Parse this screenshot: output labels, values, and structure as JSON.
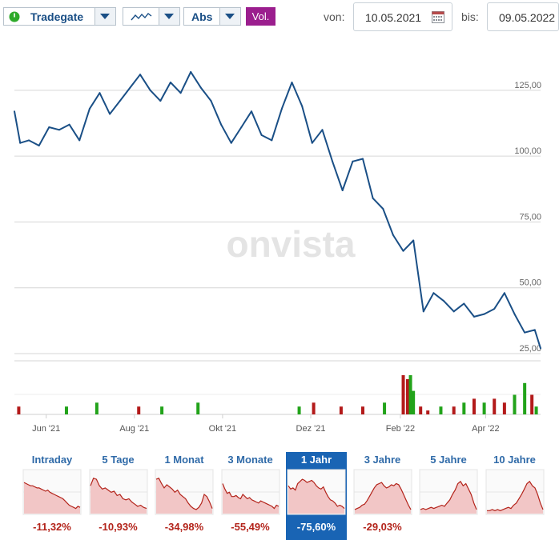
{
  "toolbar": {
    "exchange": "Tradegate",
    "scale": "Abs",
    "volume_label": "Vol.",
    "from_label": "von:",
    "from_date": "10.05.2021",
    "to_label": "bis:",
    "to_date": "09.05.2022",
    "icons": {
      "status": "green-power-icon",
      "chart_type": "line-chart-icon",
      "calendar": "calendar-icon",
      "dropdown": "chevron-down-icon"
    }
  },
  "watermark": "onvista",
  "colors": {
    "line": "#1a4f86",
    "vol_up": "#22a31a",
    "vol_down": "#b31a1a",
    "active_tab": "#1964b4",
    "negative": "#b3231a",
    "vol_button": "#9b1e8e"
  },
  "chart_data": {
    "type": "line",
    "title": "",
    "xlabel": "",
    "ylabel": "",
    "x_tick_labels": [
      "Jun '21",
      "Aug '21",
      "Okt '21",
      "Dez '21",
      "Feb '22",
      "Apr '22"
    ],
    "y_tick_labels": [
      "125,00",
      "100,00",
      "75,00",
      "50,00",
      "25,00"
    ],
    "ylim": [
      25,
      135
    ],
    "y_ticks": [
      125,
      100,
      75,
      50,
      25
    ],
    "x": [
      "2021-05-10",
      "2021-05-14",
      "2021-05-20",
      "2021-05-27",
      "2021-06-03",
      "2021-06-10",
      "2021-06-17",
      "2021-06-24",
      "2021-07-01",
      "2021-07-08",
      "2021-07-15",
      "2021-07-22",
      "2021-07-29",
      "2021-08-05",
      "2021-08-12",
      "2021-08-19",
      "2021-08-26",
      "2021-09-02",
      "2021-09-09",
      "2021-09-16",
      "2021-09-23",
      "2021-09-30",
      "2021-10-07",
      "2021-10-14",
      "2021-10-21",
      "2021-10-28",
      "2021-11-04",
      "2021-11-11",
      "2021-11-18",
      "2021-11-25",
      "2021-12-02",
      "2021-12-09",
      "2021-12-16",
      "2021-12-23",
      "2021-12-30",
      "2022-01-06",
      "2022-01-13",
      "2022-01-20",
      "2022-01-27",
      "2022-02-03",
      "2022-02-10",
      "2022-02-17",
      "2022-02-24",
      "2022-03-03",
      "2022-03-10",
      "2022-03-17",
      "2022-03-24",
      "2022-03-31",
      "2022-04-07",
      "2022-04-14",
      "2022-04-21",
      "2022-04-28",
      "2022-05-05",
      "2022-05-09"
    ],
    "series": [
      {
        "values": [
          117,
          105,
          106,
          104,
          111,
          110,
          112,
          106,
          118,
          124,
          116,
          121,
          126,
          131,
          125,
          121,
          128,
          124,
          132,
          126,
          121,
          112,
          105,
          111,
          117,
          108,
          106,
          118,
          128,
          119,
          105,
          110,
          98,
          87,
          98,
          99,
          84,
          80,
          70,
          64,
          68,
          41,
          48,
          45,
          41,
          44,
          39,
          40,
          42,
          48,
          40,
          33,
          34,
          27
        ]
      }
    ],
    "volume": {
      "x": [
        "2021-05-13",
        "2021-06-15",
        "2021-07-06",
        "2021-08-04",
        "2021-08-20",
        "2021-09-14",
        "2021-11-23",
        "2021-12-03",
        "2021-12-22",
        "2022-01-06",
        "2022-01-21",
        "2022-02-03",
        "2022-02-06",
        "2022-02-08",
        "2022-02-10",
        "2022-02-15",
        "2022-02-20",
        "2022-03-01",
        "2022-03-10",
        "2022-03-17",
        "2022-03-24",
        "2022-03-31",
        "2022-04-07",
        "2022-04-14",
        "2022-04-21",
        "2022-04-28",
        "2022-05-03",
        "2022-05-06"
      ],
      "values": [
        2,
        2,
        3,
        2,
        2,
        3,
        2,
        3,
        2,
        2,
        3,
        10,
        9,
        10,
        6,
        2,
        1,
        2,
        2,
        3,
        4,
        3,
        4,
        3,
        5,
        8,
        5,
        2
      ],
      "colors": [
        "down",
        "up",
        "up",
        "down",
        "up",
        "up",
        "up",
        "down",
        "down",
        "down",
        "up",
        "down",
        "down",
        "up",
        "up",
        "down",
        "down",
        "up",
        "down",
        "up",
        "down",
        "up",
        "down",
        "down",
        "up",
        "up",
        "down",
        "up"
      ]
    }
  },
  "periods": [
    {
      "label": "Intraday",
      "pct": "-11,32%",
      "active": false,
      "spark": [
        9,
        10,
        11,
        12,
        12,
        13,
        14,
        14,
        15,
        16,
        17,
        16,
        18,
        19,
        20,
        21,
        22,
        23,
        24,
        26,
        28,
        30,
        31,
        32,
        33,
        31,
        32
      ]
    },
    {
      "label": "5 Tage",
      "pct": "-10,93%",
      "active": false,
      "spark": [
        12,
        5,
        6,
        12,
        15,
        14,
        16,
        18,
        17,
        21,
        20,
        24,
        25,
        24,
        27,
        29,
        31,
        30,
        32,
        33
      ]
    },
    {
      "label": "1 Monat",
      "pct": "-34,98%",
      "active": false,
      "spark": [
        6,
        5,
        10,
        14,
        11,
        13,
        15,
        18,
        16,
        20,
        22,
        24,
        28,
        31,
        33,
        34,
        32,
        28,
        20,
        22,
        27,
        33
      ]
    },
    {
      "label": "3 Monate",
      "pct": "-55,49%",
      "active": false,
      "spark": [
        10,
        15,
        19,
        18,
        22,
        22,
        21,
        23,
        24,
        20,
        22,
        24,
        23,
        25,
        26,
        27,
        28,
        26,
        27,
        28,
        29,
        30,
        31,
        33,
        30,
        31
      ]
    },
    {
      "label": "1 Jahr",
      "pct": "-75,60%",
      "active": true,
      "spark": [
        12,
        15,
        14,
        16,
        10,
        8,
        6,
        7,
        9,
        8,
        7,
        9,
        12,
        14,
        15,
        13,
        18,
        22,
        25,
        26,
        28,
        31,
        30,
        31,
        33
      ]
    },
    {
      "label": "3 Jahre",
      "pct": "-29,03%",
      "active": false,
      "spark": [
        34,
        33,
        32,
        30,
        29,
        26,
        22,
        18,
        14,
        11,
        10,
        9,
        12,
        14,
        13,
        11,
        12,
        10,
        11,
        15,
        20,
        25,
        30,
        34
      ]
    },
    {
      "label": "5 Jahre",
      "pct": "",
      "active": false,
      "spark": [
        34,
        33,
        34,
        33,
        32,
        33,
        32,
        31,
        30,
        31,
        28,
        25,
        20,
        16,
        10,
        8,
        12,
        10,
        15,
        20,
        28,
        34
      ]
    },
    {
      "label": "10 Jahre",
      "pct": "",
      "active": false,
      "spark": [
        35,
        35,
        34,
        35,
        34,
        35,
        34,
        33,
        32,
        33,
        30,
        28,
        24,
        20,
        15,
        10,
        8,
        12,
        14,
        20,
        28,
        34
      ]
    }
  ]
}
